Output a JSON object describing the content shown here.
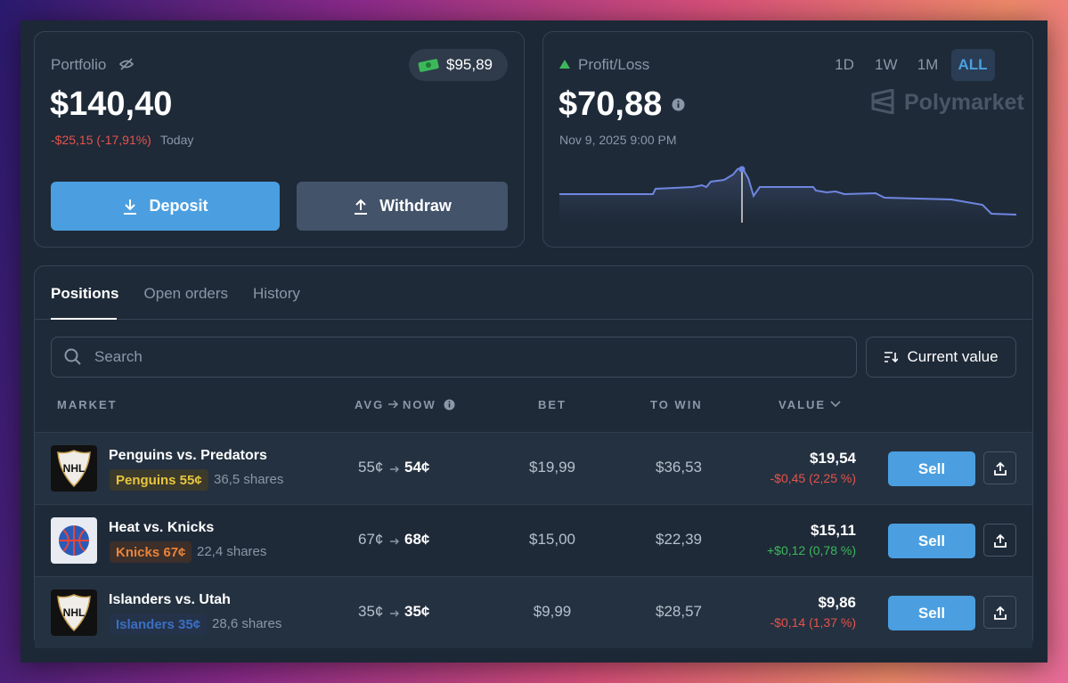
{
  "portfolio": {
    "label": "Portfolio",
    "cash": "$95,89",
    "value": "$140,40",
    "change": "-$25,15 (-17,91%)",
    "period": "Today",
    "deposit": "Deposit",
    "withdraw": "Withdraw"
  },
  "pnl": {
    "label": "Profit/Loss",
    "ranges": [
      "1D",
      "1W",
      "1M",
      "ALL"
    ],
    "value": "$70,88",
    "date": "Nov 9, 2025 9:00 PM",
    "brand": "Polymarket"
  },
  "tabs": [
    "Positions",
    "Open orders",
    "History"
  ],
  "search": "Search",
  "sort": "Current value",
  "table": {
    "headers": {
      "market": "MARKET",
      "avg": "AVG",
      "now": "NOW",
      "bet": "BET",
      "to_win": "TO WIN",
      "value": "VALUE"
    },
    "rows": [
      {
        "title": "Penguins vs. Predators",
        "outcome": "Penguins 55¢",
        "shares": "36,5 shares",
        "avg": "55¢",
        "now": "54¢",
        "bet": "$19,99",
        "to_win": "$36,53",
        "value": "$19,54",
        "change": "-$0,45 (2,25 %)",
        "action": "Sell"
      },
      {
        "title": "Heat vs. Knicks",
        "outcome": "Knicks 67¢",
        "shares": "22,4 shares",
        "avg": "67¢",
        "now": "68¢",
        "bet": "$15,00",
        "to_win": "$22,39",
        "value": "$15,11",
        "change": "+$0,12 (0,78 %)",
        "action": "Sell"
      },
      {
        "title": "Islanders vs. Utah",
        "outcome": "Islanders 35¢",
        "shares": "28,6 shares",
        "avg": "35¢",
        "now": "35¢",
        "bet": "$9,99",
        "to_win": "$28,57",
        "value": "$9,86",
        "change": "-$0,14 (1,37 %)",
        "action": "Sell"
      }
    ]
  }
}
